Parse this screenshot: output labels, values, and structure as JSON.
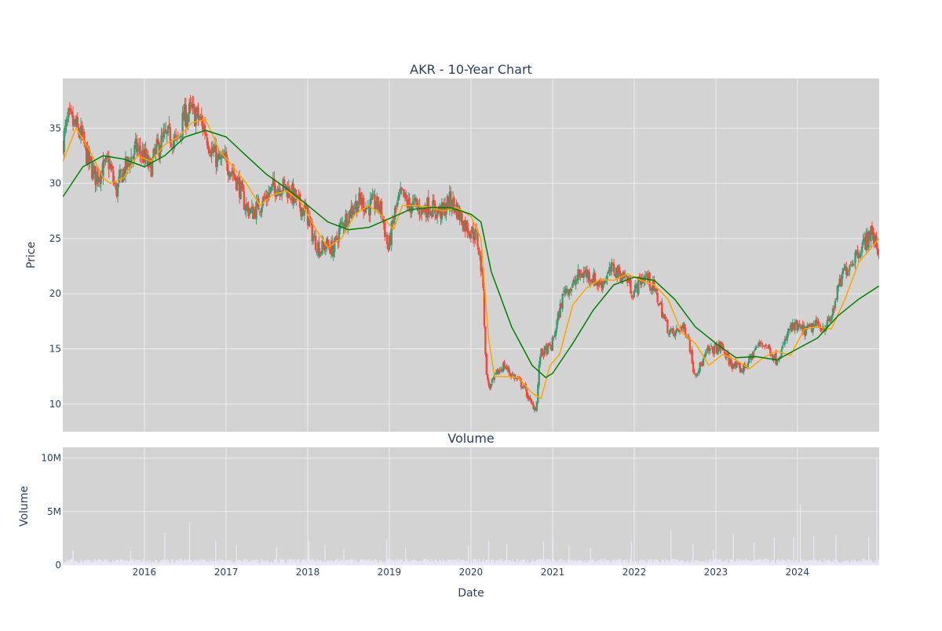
{
  "chart_data": [
    {
      "type": "candlestick",
      "title": "AKR - 10-Year Chart",
      "xlabel": "",
      "ylabel": "Price",
      "ylim": [
        7.5,
        39.5
      ],
      "y_ticks": [
        10,
        15,
        20,
        25,
        30,
        35
      ],
      "xlim": [
        "2015-01-01",
        "2025-01-01"
      ],
      "grid": true,
      "colors": {
        "increasing": "#3d9970",
        "decreasing": "#ff4136",
        "ma_short": "#ffa500",
        "ma_long": "#008000",
        "background": "#d3d3d3"
      },
      "price_path": {
        "x": [
          "2015-01-02",
          "2015-02-01",
          "2015-03-01",
          "2015-04-01",
          "2015-05-01",
          "2015-06-01",
          "2015-07-01",
          "2015-08-01",
          "2015-09-01",
          "2015-10-01",
          "2015-11-01",
          "2015-12-01",
          "2016-01-01",
          "2016-02-01",
          "2016-03-01",
          "2016-04-01",
          "2016-05-01",
          "2016-06-01",
          "2016-07-01",
          "2016-08-01",
          "2016-09-01",
          "2016-10-01",
          "2016-11-01",
          "2016-12-01",
          "2017-01-01",
          "2017-02-01",
          "2017-03-01",
          "2017-04-01",
          "2017-05-01",
          "2017-06-01",
          "2017-07-01",
          "2017-08-01",
          "2017-09-01",
          "2017-10-01",
          "2017-11-01",
          "2017-12-01",
          "2018-01-01",
          "2018-02-01",
          "2018-03-01",
          "2018-04-01",
          "2018-05-01",
          "2018-06-01",
          "2018-07-01",
          "2018-08-01",
          "2018-09-01",
          "2018-10-01",
          "2018-11-01",
          "2018-12-01",
          "2019-01-01",
          "2019-02-01",
          "2019-03-01",
          "2019-04-01",
          "2019-05-01",
          "2019-06-01",
          "2019-07-01",
          "2019-08-01",
          "2019-09-01",
          "2019-10-01",
          "2019-11-01",
          "2019-12-01",
          "2020-01-01",
          "2020-02-01",
          "2020-03-01",
          "2020-03-10",
          "2020-03-20",
          "2020-04-01",
          "2020-05-01",
          "2020-06-01",
          "2020-07-01",
          "2020-08-01",
          "2020-09-01",
          "2020-10-01",
          "2020-10-25",
          "2020-11-10",
          "2020-12-01",
          "2021-01-01",
          "2021-02-01",
          "2021-03-01",
          "2021-04-01",
          "2021-05-01",
          "2021-06-01",
          "2021-07-01",
          "2021-08-01",
          "2021-09-01",
          "2021-10-01",
          "2021-11-01",
          "2021-12-01",
          "2022-01-01",
          "2022-02-01",
          "2022-03-01",
          "2022-04-01",
          "2022-05-01",
          "2022-06-01",
          "2022-07-01",
          "2022-08-01",
          "2022-09-01",
          "2022-10-01",
          "2022-11-01",
          "2022-12-01",
          "2023-01-01",
          "2023-02-01",
          "2023-03-01",
          "2023-04-01",
          "2023-05-01",
          "2023-06-01",
          "2023-07-01",
          "2023-08-01",
          "2023-09-01",
          "2023-10-01",
          "2023-11-01",
          "2023-12-01",
          "2024-01-01",
          "2024-02-01",
          "2024-03-01",
          "2024-04-01",
          "2024-05-01",
          "2024-06-01",
          "2024-07-01",
          "2024-08-01",
          "2024-09-01",
          "2024-10-01",
          "2024-11-01",
          "2024-12-01",
          "2024-12-31"
        ],
        "y": [
          33.5,
          35.8,
          35.2,
          34.2,
          32.0,
          30.6,
          31.2,
          31.9,
          29.2,
          31.0,
          32.0,
          33.2,
          32.5,
          31.3,
          33.0,
          34.0,
          34.3,
          33.6,
          36.0,
          36.5,
          36.0,
          35.0,
          33.0,
          32.0,
          32.0,
          31.2,
          30.0,
          28.0,
          27.3,
          28.0,
          28.7,
          29.5,
          29.8,
          29.6,
          28.9,
          28.0,
          27.3,
          25.0,
          24.0,
          24.4,
          24.0,
          26.0,
          27.0,
          28.0,
          28.4,
          27.8,
          28.2,
          27.6,
          24.0,
          27.5,
          29.0,
          28.0,
          28.0,
          27.5,
          28.0,
          27.5,
          27.4,
          28.4,
          27.8,
          26.5,
          25.8,
          25.2,
          21.0,
          14.5,
          12.0,
          11.5,
          12.8,
          13.5,
          12.8,
          12.2,
          11.5,
          10.0,
          9.6,
          14.5,
          14.8,
          15.2,
          18.0,
          20.5,
          20.5,
          21.6,
          21.9,
          21.5,
          20.8,
          21.4,
          22.3,
          21.8,
          21.5,
          20.0,
          21.2,
          21.6,
          20.5,
          19.0,
          17.0,
          16.2,
          17.0,
          16.5,
          12.8,
          13.5,
          14.8,
          15.0,
          15.2,
          14.0,
          13.4,
          13.1,
          13.8,
          15.0,
          15.6,
          15.0,
          14.0,
          15.0,
          16.8,
          17.0,
          16.6,
          16.8,
          17.2,
          17.0,
          17.5,
          20.0,
          22.0,
          22.8,
          23.8,
          24.6,
          25.6,
          24.0
        ]
      },
      "series": [
        {
          "name": "",
          "role": "moving-average-short",
          "x": [
            "2015-01-02",
            "2015-03-01",
            "2015-05-01",
            "2015-07-01",
            "2015-08-01",
            "2015-10-01",
            "2015-12-01",
            "2016-02-01",
            "2016-04-01",
            "2016-06-01",
            "2016-08-01",
            "2016-10-01",
            "2016-12-01",
            "2017-02-01",
            "2017-04-01",
            "2017-06-01",
            "2017-08-01",
            "2017-10-01",
            "2017-12-01",
            "2018-02-01",
            "2018-04-01",
            "2018-06-01",
            "2018-08-01",
            "2018-10-01",
            "2018-12-01",
            "2019-01-20",
            "2019-03-01",
            "2019-05-01",
            "2019-07-01",
            "2019-09-01",
            "2019-11-01",
            "2020-01-01",
            "2020-02-15",
            "2020-03-20",
            "2020-04-15",
            "2020-06-01",
            "2020-08-01",
            "2020-10-01",
            "2020-11-10",
            "2020-12-20",
            "2021-02-01",
            "2021-04-01",
            "2021-06-01",
            "2021-08-01",
            "2021-10-01",
            "2021-12-01",
            "2022-02-01",
            "2022-04-01",
            "2022-06-01",
            "2022-08-01",
            "2022-10-01",
            "2022-12-01",
            "2023-02-01",
            "2023-04-01",
            "2023-06-01",
            "2023-08-01",
            "2023-10-01",
            "2023-12-01",
            "2024-02-01",
            "2024-04-01",
            "2024-06-01",
            "2024-08-01",
            "2024-10-01",
            "2024-12-31"
          ],
          "y": [
            32.0,
            35.0,
            33.0,
            30.5,
            30.0,
            30.5,
            32.5,
            32.0,
            33.5,
            34.2,
            35.5,
            35.8,
            33.0,
            31.5,
            30.0,
            28.0,
            29.0,
            29.3,
            28.3,
            26.0,
            24.2,
            25.0,
            27.2,
            28.0,
            27.0,
            25.8,
            28.0,
            28.0,
            27.8,
            27.5,
            27.8,
            27.0,
            25.0,
            16.0,
            12.5,
            12.5,
            12.4,
            11.0,
            10.5,
            13.5,
            14.5,
            19.0,
            20.5,
            21.3,
            21.2,
            21.8,
            21.2,
            20.8,
            19.5,
            16.5,
            15.5,
            13.5,
            14.5,
            14.0,
            13.2,
            14.2,
            14.8,
            14.4,
            16.8,
            17.0,
            16.8,
            19.5,
            22.8,
            25.0
          ]
        },
        {
          "name": "",
          "role": "moving-average-long",
          "x": [
            "2015-01-02",
            "2015-04-01",
            "2015-07-01",
            "2015-10-01",
            "2016-01-01",
            "2016-04-01",
            "2016-07-01",
            "2016-10-01",
            "2017-01-01",
            "2017-04-01",
            "2017-07-01",
            "2017-10-01",
            "2018-01-01",
            "2018-04-01",
            "2018-07-01",
            "2018-10-01",
            "2019-01-01",
            "2019-04-01",
            "2019-07-01",
            "2019-10-01",
            "2020-01-01",
            "2020-02-15",
            "2020-04-01",
            "2020-07-01",
            "2020-10-01",
            "2020-12-01",
            "2021-01-01",
            "2021-04-01",
            "2021-07-01",
            "2021-10-01",
            "2022-01-01",
            "2022-04-01",
            "2022-07-01",
            "2022-10-01",
            "2023-01-01",
            "2023-04-01",
            "2023-07-01",
            "2023-10-01",
            "2024-01-01",
            "2024-04-01",
            "2024-07-01",
            "2024-10-01",
            "2024-12-31"
          ],
          "y": [
            28.8,
            31.5,
            32.5,
            32.2,
            31.5,
            32.5,
            34.2,
            34.8,
            34.2,
            32.5,
            30.8,
            29.5,
            28.0,
            26.5,
            25.8,
            26.0,
            26.8,
            27.6,
            27.8,
            27.8,
            27.2,
            26.5,
            22.0,
            17.0,
            13.5,
            12.4,
            12.8,
            15.5,
            18.5,
            20.8,
            21.5,
            21.2,
            19.5,
            17.0,
            15.5,
            14.2,
            14.3,
            14.0,
            15.0,
            16.0,
            18.0,
            19.5,
            20.7
          ]
        }
      ]
    },
    {
      "type": "bar",
      "title": "Volume",
      "xlabel": "Date",
      "ylabel": "Volume",
      "ylim": [
        0,
        11000000
      ],
      "y_ticks": [
        0,
        5000000,
        10000000
      ],
      "y_tick_labels": [
        "0",
        "5M",
        "10M"
      ],
      "x_ticks": [
        "2016-01-01",
        "2017-01-01",
        "2018-01-01",
        "2019-01-01",
        "2020-01-01",
        "2021-01-01",
        "2022-01-01",
        "2023-01-01",
        "2024-01-01"
      ],
      "x_tick_labels": [
        "2016",
        "2017",
        "2018",
        "2019",
        "2020",
        "2021",
        "2022",
        "2023",
        "2024"
      ],
      "grid": true,
      "colors": {
        "bar": "#e8e8f4",
        "background": "#d3d3d3"
      },
      "baseline": 500000,
      "spikes": [
        {
          "x": "2015-02-15",
          "v": 1400000
        },
        {
          "x": "2015-11-01",
          "v": 1300000
        },
        {
          "x": "2016-04-01",
          "v": 3000000
        },
        {
          "x": "2016-07-20",
          "v": 4000000
        },
        {
          "x": "2016-11-15",
          "v": 2300000
        },
        {
          "x": "2017-02-15",
          "v": 1800000
        },
        {
          "x": "2017-08-15",
          "v": 1700000
        },
        {
          "x": "2018-01-05",
          "v": 2300000
        },
        {
          "x": "2018-03-20",
          "v": 1800000
        },
        {
          "x": "2018-06-10",
          "v": 1500000
        },
        {
          "x": "2018-12-20",
          "v": 2400000
        },
        {
          "x": "2019-03-15",
          "v": 1600000
        },
        {
          "x": "2019-12-20",
          "v": 1800000
        },
        {
          "x": "2020-03-20",
          "v": 2300000
        },
        {
          "x": "2020-06-10",
          "v": 2000000
        },
        {
          "x": "2020-11-20",
          "v": 2200000
        },
        {
          "x": "2021-01-01",
          "v": 2800000
        },
        {
          "x": "2021-03-15",
          "v": 1800000
        },
        {
          "x": "2021-06-20",
          "v": 1600000
        },
        {
          "x": "2021-12-20",
          "v": 2200000
        },
        {
          "x": "2022-06-15",
          "v": 3200000
        },
        {
          "x": "2022-09-20",
          "v": 1900000
        },
        {
          "x": "2022-12-20",
          "v": 1500000
        },
        {
          "x": "2023-03-20",
          "v": 2900000
        },
        {
          "x": "2023-06-20",
          "v": 2100000
        },
        {
          "x": "2023-09-20",
          "v": 2600000
        },
        {
          "x": "2023-12-15",
          "v": 2600000
        },
        {
          "x": "2024-01-15",
          "v": 5700000
        },
        {
          "x": "2024-03-15",
          "v": 2700000
        },
        {
          "x": "2024-06-20",
          "v": 2800000
        },
        {
          "x": "2024-11-15",
          "v": 2600000
        },
        {
          "x": "2024-12-22",
          "v": 10000000
        }
      ]
    }
  ]
}
